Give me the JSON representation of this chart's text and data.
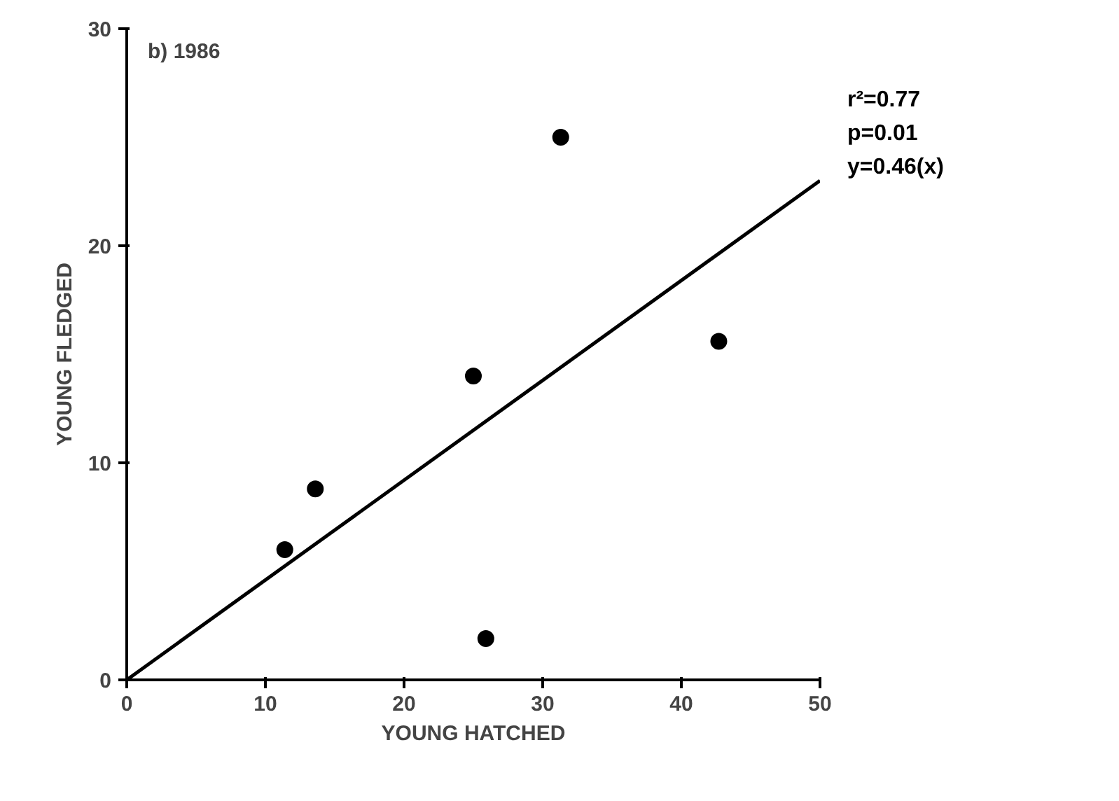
{
  "chart_data": {
    "type": "scatter",
    "xlabel": "YOUNG HATCHED",
    "ylabel": "YOUNG FLEDGED",
    "annotations": [
      "b) 1986",
      "r²=0.77",
      "p=0.01",
      "y=0.46(x)"
    ],
    "xlim": [
      0,
      50
    ],
    "ylim": [
      0,
      30
    ],
    "xticks": [
      0,
      10,
      20,
      30,
      40,
      50
    ],
    "yticks": [
      0,
      10,
      20,
      30
    ],
    "grid": false,
    "marker": "circle",
    "series": [
      {
        "color": "#000000",
        "x": [
          11.4,
          13.6,
          25.0,
          25.9,
          31.3,
          42.7
        ],
        "values": [
          6.0,
          8.8,
          14.0,
          1.9,
          25.0,
          15.6
        ]
      },
      {
        "type": "line",
        "color": "#000000",
        "x": [
          0,
          50
        ],
        "values": [
          0,
          23
        ],
        "line_style": "solid",
        "marker": "none"
      }
    ]
  }
}
